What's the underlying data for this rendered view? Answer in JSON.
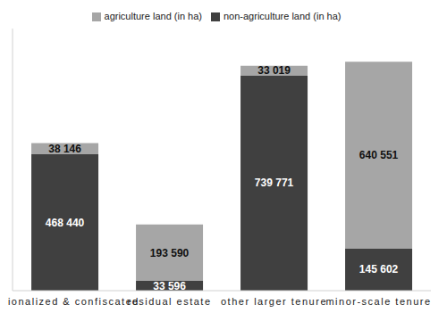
{
  "chart_data": {
    "type": "bar",
    "categories": [
      "nationalized & confiscated",
      "residual estate",
      "other larger tenure",
      "minor-scale tenure"
    ],
    "series": [
      {
        "name": "non-agriculture land (in ha)",
        "color": "#404040",
        "values": [
          468440,
          33596,
          739771,
          145602
        ],
        "value_labels": [
          "468 440",
          "33 596",
          "739 771",
          "145 602"
        ]
      },
      {
        "name": "agriculture land (in ha)",
        "color": "#a6a6a6",
        "values": [
          38146,
          193590,
          33019,
          640551
        ],
        "value_labels": [
          "38 146",
          "193 590",
          "33 019",
          "640 551"
        ]
      }
    ],
    "ylim": [
      0,
      900000
    ],
    "stacked": true,
    "data_labels": true,
    "legend": "top",
    "tick_labels": "x"
  }
}
